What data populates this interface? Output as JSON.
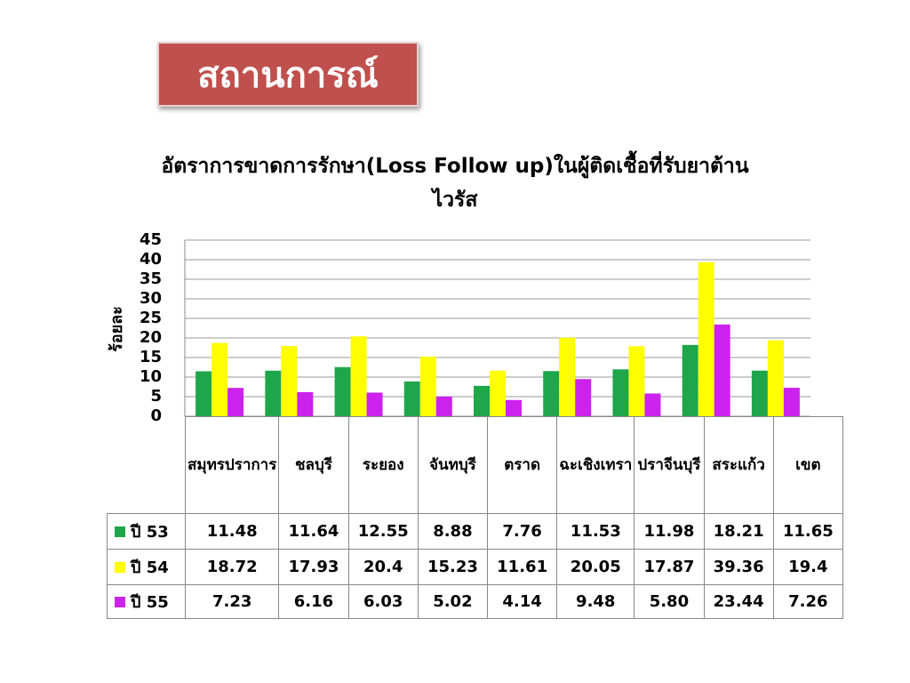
{
  "slide_title": "สถานการณ์",
  "chart_data": {
    "type": "bar",
    "title": "อัตราการขาดการรักษา(Loss Follow up)ในผู้ติดเชื้อที่รับยาต้านไวรัส",
    "y_label": "ร้อยละ",
    "categories": [
      "สมุทรปราการ",
      "ชลบุรี",
      "ระยอง",
      "จันทบุรี",
      "ตราด",
      "ฉะเชิงเทรา",
      "ปราจีนบุรี",
      "สระแก้ว",
      "เขต"
    ],
    "series": [
      {
        "name": "ปี 53",
        "color": "#1fa64a",
        "values": [
          11.48,
          11.64,
          12.55,
          8.88,
          7.76,
          11.53,
          11.98,
          18.21,
          11.65
        ]
      },
      {
        "name": "ปี 54",
        "color": "#ffff00",
        "values": [
          18.72,
          17.93,
          20.4,
          15.23,
          11.61,
          20.05,
          17.87,
          39.36,
          19.4
        ]
      },
      {
        "name": "ปี 55",
        "color": "#cc22ee",
        "values": [
          7.23,
          6.16,
          6.03,
          5.02,
          4.14,
          9.48,
          5.8,
          23.44,
          7.26
        ],
        "value_labels": [
          "7.23",
          "6.16",
          "6.03",
          "5.02",
          "4.14",
          "9.48",
          "5.80",
          "23.44",
          "7.26"
        ]
      }
    ],
    "ylim": [
      0,
      45
    ],
    "yticks": [
      0,
      5,
      10,
      15,
      20,
      25,
      30,
      35,
      40,
      45
    ],
    "grid": true
  }
}
